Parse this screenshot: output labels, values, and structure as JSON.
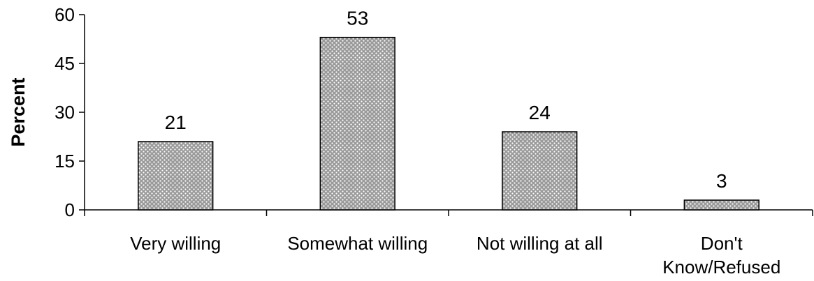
{
  "chart_data": {
    "type": "bar",
    "title": "",
    "xlabel": "",
    "ylabel": "Percent",
    "ylim": [
      0,
      60
    ],
    "yticks": [
      0,
      15,
      30,
      45,
      60
    ],
    "categories": [
      [
        "Very willing"
      ],
      [
        "Somewhat willing"
      ],
      [
        "Not willing at all"
      ],
      [
        "Don't",
        "Know/Refused"
      ]
    ],
    "values": [
      21,
      53,
      24,
      3
    ],
    "data_labels": [
      "21",
      "53",
      "24",
      "3"
    ],
    "grid": false,
    "legend": "none",
    "bar_fill": "#9a9a9a",
    "bar_pattern_dot": "#ffffff",
    "bar_stroke": "#000000"
  }
}
